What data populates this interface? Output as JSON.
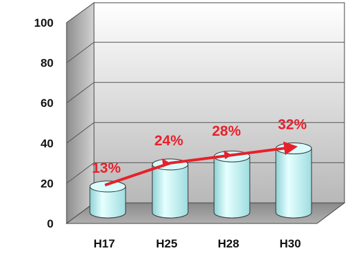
{
  "chart_data": {
    "type": "bar",
    "style": "3d-cylinder",
    "title": "",
    "xlabel": "",
    "ylabel": "",
    "categories": [
      "H17",
      "H25",
      "H28",
      "H30"
    ],
    "series": [
      {
        "values": [
          13,
          24,
          28,
          32
        ]
      }
    ],
    "data_labels": [
      "13%",
      "24%",
      "28%",
      "32%"
    ],
    "ylim": [
      0,
      100
    ],
    "yticks": [
      "0",
      "20",
      "40",
      "60",
      "80",
      "100"
    ],
    "grid": true,
    "legend": "none",
    "trend_arrow": true,
    "colors": {
      "cylinder_fill": "#bfeef0",
      "cylinder_top": "#d9fbfc",
      "cylinder_stroke": "#333333",
      "arrow": "#e8202a",
      "label": "#e8202a",
      "wall_light": "#ffffff",
      "wall_dark": "#b5b5b5",
      "floor": "#9a9a9a"
    }
  }
}
